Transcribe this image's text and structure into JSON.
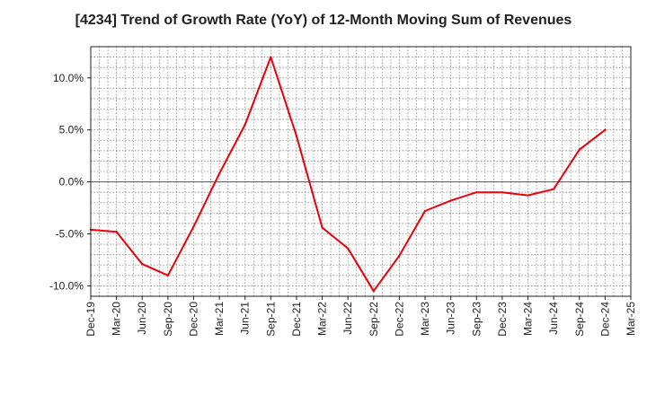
{
  "chart_data": {
    "type": "line",
    "title": "[4234]  Trend of Growth Rate (YoY) of 12-Month Moving Sum of Revenues",
    "xlabel": "",
    "ylabel": "",
    "categories": [
      "Dec-19",
      "Mar-20",
      "Jun-20",
      "Sep-20",
      "Dec-20",
      "Mar-21",
      "Jun-21",
      "Sep-21",
      "Dec-21",
      "Mar-22",
      "Jun-22",
      "Sep-22",
      "Dec-22",
      "Mar-23",
      "Jun-23",
      "Sep-23",
      "Dec-23",
      "Mar-24",
      "Jun-24",
      "Sep-24",
      "Dec-24",
      "Mar-25"
    ],
    "y_ticks": [
      10,
      5,
      0,
      -5,
      -10
    ],
    "y_tick_labels": [
      "10.0%",
      "5.0%",
      "0.0%",
      "-5.0%",
      "-10.0%"
    ],
    "ylim": [
      -11.0,
      13.0
    ],
    "grid": true,
    "line_color": "#e8000b",
    "series": [
      {
        "values": [
          -4.6,
          -4.8,
          -7.9,
          -9.0,
          -4.3,
          0.8,
          5.5,
          12.0,
          4.4,
          -4.4,
          -6.4,
          -10.5,
          -7.1,
          -2.8,
          -1.8,
          -1.0,
          -1.0,
          -1.3,
          -0.7,
          3.1,
          5.0,
          null
        ]
      }
    ]
  }
}
